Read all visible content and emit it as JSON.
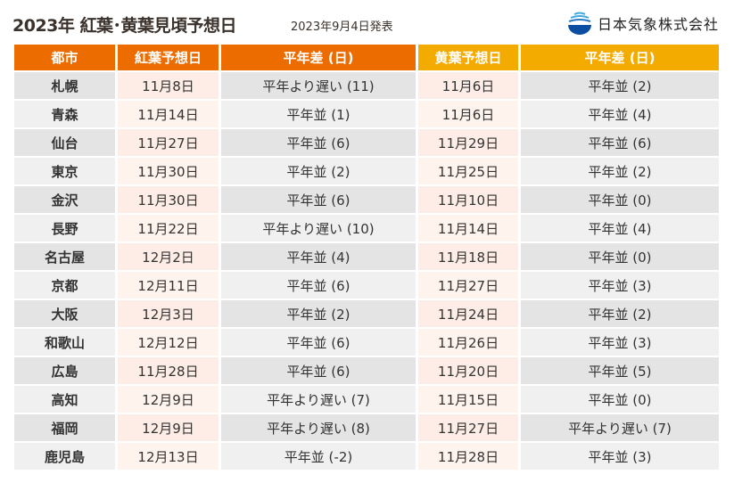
{
  "header": {
    "title": "2023年 紅葉･黄葉見頃予想日",
    "date": "2023年9月4日発表",
    "company": "日本気象株式会社"
  },
  "colors": {
    "koyo_header": "#ec6c00",
    "oyo_header": "#f3ab00"
  },
  "columns": [
    "都市",
    "紅葉予想日",
    "平年差 (日)",
    "黄葉予想日",
    "平年差 (日)"
  ],
  "rows": [
    [
      "札幌",
      "11月8日",
      "平年より遅い (11)",
      "11月6日",
      "平年並 (2)"
    ],
    [
      "青森",
      "11月14日",
      "平年並 (1)",
      "11月6日",
      "平年並 (4)"
    ],
    [
      "仙台",
      "11月27日",
      "平年並 (6)",
      "11月29日",
      "平年並 (6)"
    ],
    [
      "東京",
      "11月30日",
      "平年並 (2)",
      "11月25日",
      "平年並 (2)"
    ],
    [
      "金沢",
      "11月30日",
      "平年並 (6)",
      "11月10日",
      "平年並 (0)"
    ],
    [
      "長野",
      "11月22日",
      "平年より遅い (10)",
      "11月14日",
      "平年並 (4)"
    ],
    [
      "名古屋",
      "12月2日",
      "平年並 (4)",
      "11月18日",
      "平年並 (0)"
    ],
    [
      "京都",
      "12月11日",
      "平年並 (6)",
      "11月27日",
      "平年並 (3)"
    ],
    [
      "大阪",
      "12月3日",
      "平年並 (2)",
      "11月24日",
      "平年並 (2)"
    ],
    [
      "和歌山",
      "12月12日",
      "平年並 (6)",
      "11月26日",
      "平年並 (3)"
    ],
    [
      "広島",
      "11月28日",
      "平年並 (6)",
      "11月20日",
      "平年並 (5)"
    ],
    [
      "高知",
      "12月9日",
      "平年より遅い (7)",
      "11月15日",
      "平年並 (0)"
    ],
    [
      "福岡",
      "12月9日",
      "平年より遅い (8)",
      "11月27日",
      "平年より遅い (7)"
    ],
    [
      "鹿児島",
      "12月13日",
      "平年並 (-2)",
      "11月28日",
      "平年並 (3)"
    ]
  ]
}
